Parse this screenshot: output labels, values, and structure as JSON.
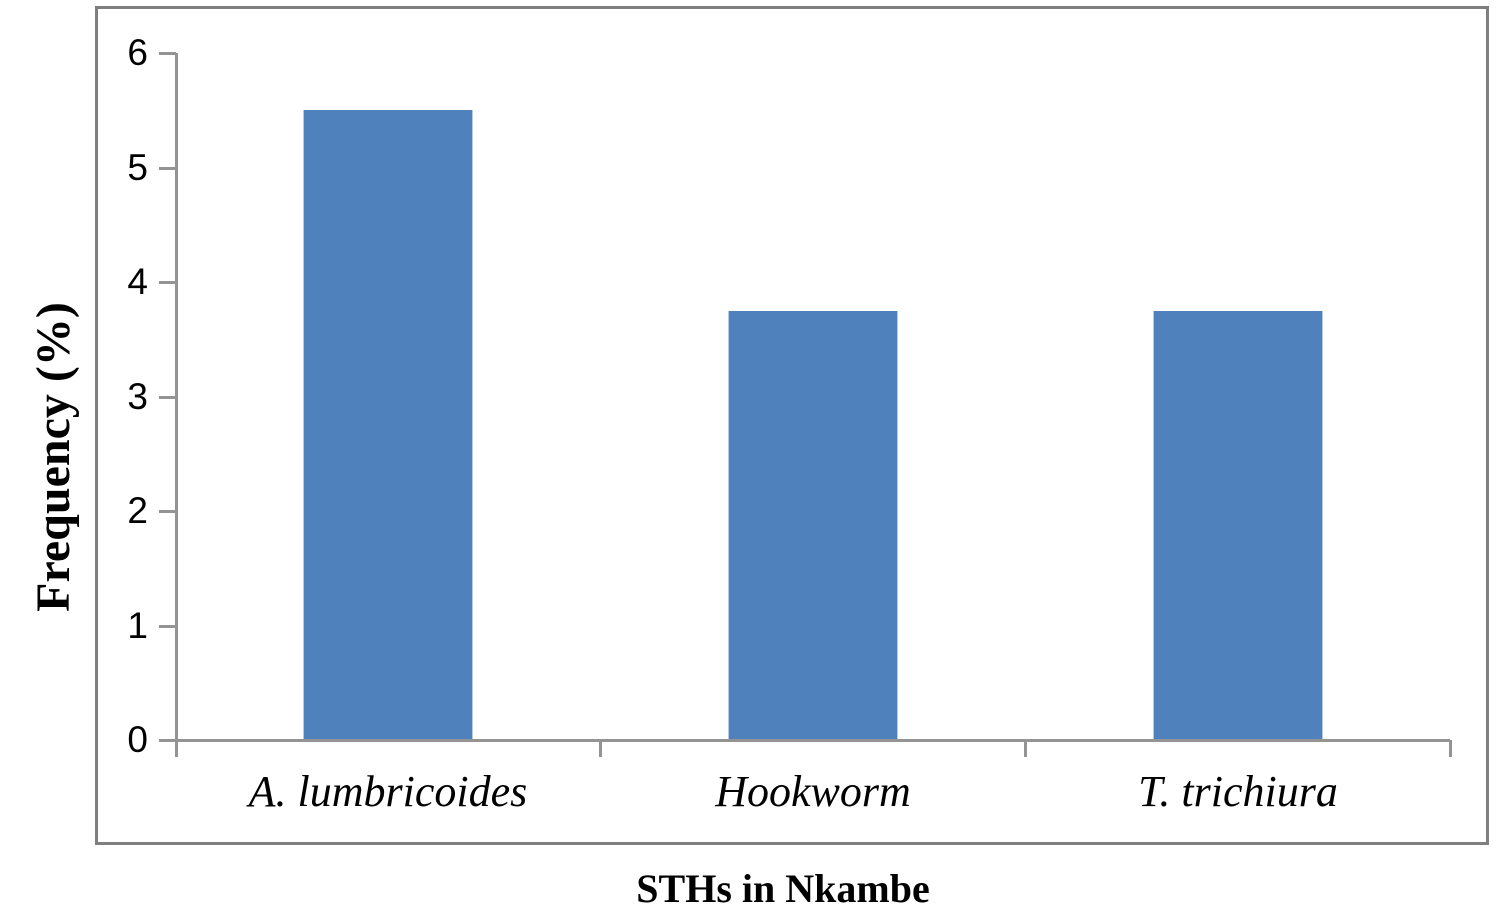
{
  "chart_data": {
    "type": "bar",
    "categories": [
      "A. lumbricoides",
      "Hookworm",
      "T. trichiura"
    ],
    "values": [
      5.5,
      3.75,
      3.75
    ],
    "title": "",
    "xlabel": "STHs in Nkambe",
    "ylabel": "Frequency (%)",
    "ylim": [
      0,
      6
    ],
    "yticks": [
      0,
      1,
      2,
      3,
      4,
      5,
      6
    ],
    "grid": false,
    "legend": "none",
    "bar_color": "#4F81BD",
    "bar_edge_color": "#B7C9E4",
    "axis_color": "#949494",
    "border_color": "#7F7F7F",
    "text_color": "#000000"
  }
}
